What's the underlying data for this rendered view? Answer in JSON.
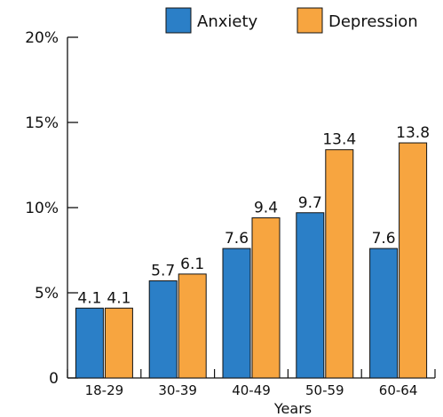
{
  "chart_data": {
    "type": "bar",
    "categories": [
      "18-29",
      "30-39",
      "40-49",
      "50-59",
      "60-64"
    ],
    "series": [
      {
        "name": "Anxiety",
        "values": [
          4.1,
          5.7,
          7.6,
          9.7,
          7.6
        ],
        "color": "#2b7fc7"
      },
      {
        "name": "Depression",
        "values": [
          4.1,
          6.1,
          9.4,
          13.4,
          13.8
        ],
        "color": "#f7a540"
      }
    ],
    "data_labels": [
      [
        "4.1",
        "5.7",
        "7.6",
        "9.7",
        "7.6"
      ],
      [
        "4.1",
        "6.1",
        "9.4",
        "13.4",
        "13.8"
      ]
    ],
    "xlabel": "Years",
    "ylabel": "",
    "ylim": [
      0,
      20
    ],
    "y_ticks": [
      0,
      5,
      10,
      15,
      20
    ],
    "y_tick_labels": [
      "0",
      "5%",
      "10%",
      "15%",
      "20%"
    ],
    "grid": false,
    "legend_position": "top-right"
  }
}
